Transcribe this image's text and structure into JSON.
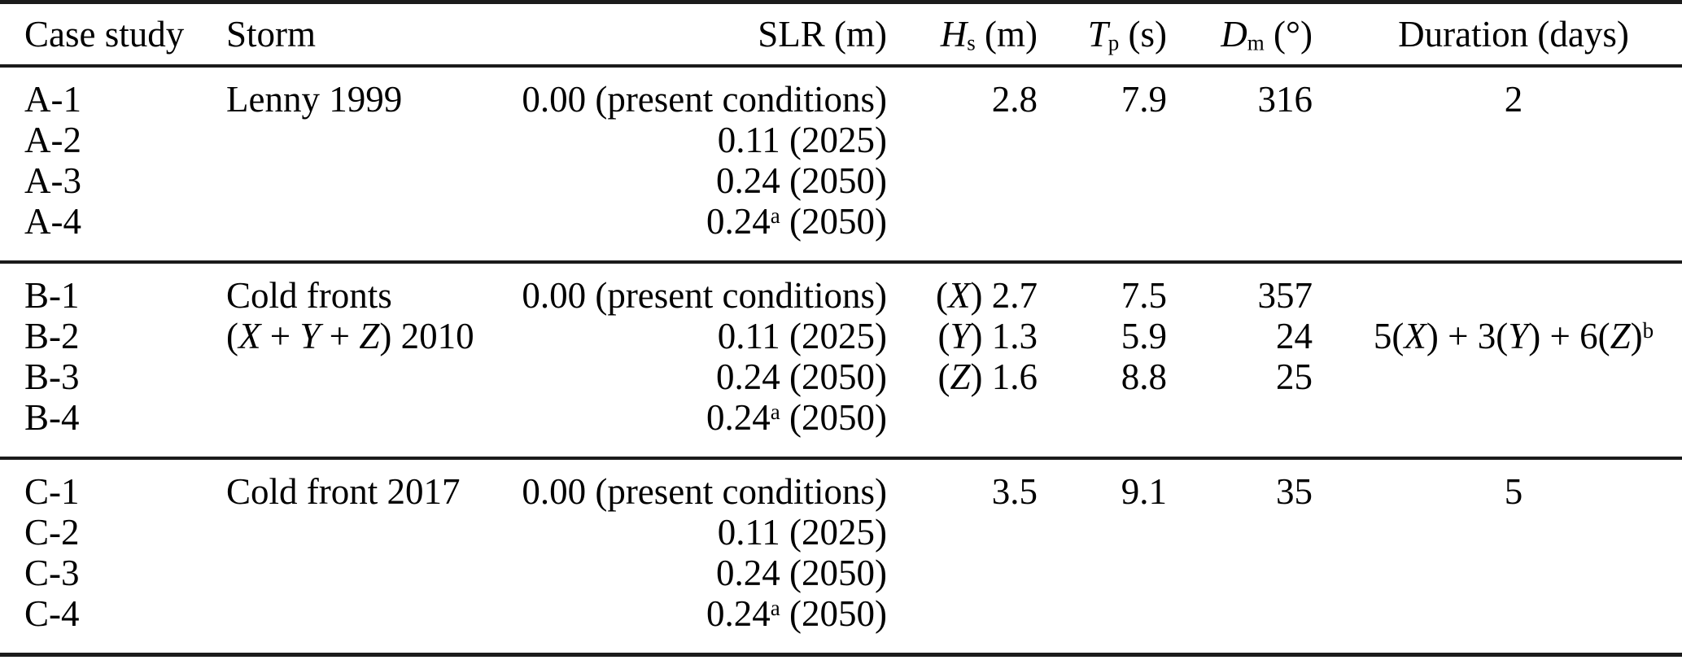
{
  "table": {
    "columns": [
      {
        "id": "case_study",
        "header": [
          {
            "t": "Case study"
          }
        ]
      },
      {
        "id": "storm",
        "header": [
          {
            "t": "Storm"
          }
        ]
      },
      {
        "id": "slr",
        "header": [
          {
            "t": "SLR (m)"
          }
        ]
      },
      {
        "id": "hs",
        "header": [
          {
            "t": "H",
            "style": "i"
          },
          {
            "t": "s",
            "style": "sub"
          },
          {
            "t": " (m)"
          }
        ]
      },
      {
        "id": "tp",
        "header": [
          {
            "t": "T",
            "style": "i"
          },
          {
            "t": "p",
            "style": "sub"
          },
          {
            "t": " (s)"
          }
        ]
      },
      {
        "id": "dm",
        "header": [
          {
            "t": "D",
            "style": "i"
          },
          {
            "t": "m",
            "style": "sub"
          },
          {
            "t": " (°)"
          }
        ]
      },
      {
        "id": "duration",
        "header": [
          {
            "t": "Duration (days)"
          }
        ]
      }
    ],
    "groups": [
      {
        "id": "A",
        "rows": [
          [
            [
              {
                "t": "A-1"
              }
            ],
            [
              {
                "t": "Lenny 1999"
              }
            ],
            [
              {
                "t": "0.00 (present conditions)"
              }
            ],
            [
              {
                "t": "2.8"
              }
            ],
            [
              {
                "t": "7.9"
              }
            ],
            [
              {
                "t": "316"
              }
            ],
            [
              {
                "t": "2"
              }
            ]
          ],
          [
            [
              {
                "t": "A-2"
              }
            ],
            [],
            [
              {
                "t": "0.11 (2025)"
              }
            ],
            [],
            [],
            [],
            []
          ],
          [
            [
              {
                "t": "A-3"
              }
            ],
            [],
            [
              {
                "t": "0.24 (2050)"
              }
            ],
            [],
            [],
            [],
            []
          ],
          [
            [
              {
                "t": "A-4"
              }
            ],
            [],
            [
              {
                "t": "0.24"
              },
              {
                "t": "a",
                "style": "sup"
              },
              {
                "t": " (2050)"
              }
            ],
            [],
            [],
            [],
            []
          ]
        ]
      },
      {
        "id": "B",
        "rows": [
          [
            [
              {
                "t": "B-1"
              }
            ],
            [
              {
                "t": "Cold fronts"
              }
            ],
            [
              {
                "t": "0.00 (present conditions)"
              }
            ],
            [
              {
                "t": "("
              },
              {
                "t": "X",
                "style": "i"
              },
              {
                "t": ") 2.7"
              }
            ],
            [
              {
                "t": "7.5"
              }
            ],
            [
              {
                "t": "357"
              }
            ],
            []
          ],
          [
            [
              {
                "t": "B-2"
              }
            ],
            [
              {
                "t": "("
              },
              {
                "t": "X",
                "style": "i"
              },
              {
                "t": " + "
              },
              {
                "t": "Y",
                "style": "i"
              },
              {
                "t": " + "
              },
              {
                "t": "Z",
                "style": "i"
              },
              {
                "t": ") 2010"
              }
            ],
            [
              {
                "t": "0.11 (2025)"
              }
            ],
            [
              {
                "t": "("
              },
              {
                "t": "Y",
                "style": "i"
              },
              {
                "t": ") 1.3"
              }
            ],
            [
              {
                "t": "5.9"
              }
            ],
            [
              {
                "t": "24"
              }
            ],
            [
              {
                "t": "5("
              },
              {
                "t": "X",
                "style": "i"
              },
              {
                "t": ") + 3("
              },
              {
                "t": "Y",
                "style": "i"
              },
              {
                "t": ") + 6("
              },
              {
                "t": "Z",
                "style": "i"
              },
              {
                "t": ")"
              },
              {
                "t": "b",
                "style": "sup"
              }
            ]
          ],
          [
            [
              {
                "t": "B-3"
              }
            ],
            [],
            [
              {
                "t": "0.24 (2050)"
              }
            ],
            [
              {
                "t": "("
              },
              {
                "t": "Z",
                "style": "i"
              },
              {
                "t": ") 1.6"
              }
            ],
            [
              {
                "t": "8.8"
              }
            ],
            [
              {
                "t": "25"
              }
            ],
            []
          ],
          [
            [
              {
                "t": "B-4"
              }
            ],
            [],
            [
              {
                "t": "0.24"
              },
              {
                "t": "a",
                "style": "sup"
              },
              {
                "t": " (2050)"
              }
            ],
            [],
            [],
            [],
            []
          ]
        ]
      },
      {
        "id": "C",
        "rows": [
          [
            [
              {
                "t": "C-1"
              }
            ],
            [
              {
                "t": "Cold front 2017"
              }
            ],
            [
              {
                "t": "0.00 (present conditions)"
              }
            ],
            [
              {
                "t": "3.5"
              }
            ],
            [
              {
                "t": "9.1"
              }
            ],
            [
              {
                "t": "35"
              }
            ],
            [
              {
                "t": "5"
              }
            ]
          ],
          [
            [
              {
                "t": "C-2"
              }
            ],
            [],
            [
              {
                "t": "0.11 (2025)"
              }
            ],
            [],
            [],
            [],
            []
          ],
          [
            [
              {
                "t": "C-3"
              }
            ],
            [],
            [
              {
                "t": "0.24 (2050)"
              }
            ],
            [],
            [],
            [],
            []
          ],
          [
            [
              {
                "t": "C-4"
              }
            ],
            [],
            [
              {
                "t": "0.24"
              },
              {
                "t": "a",
                "style": "sup"
              },
              {
                "t": " (2050)"
              }
            ],
            [],
            [],
            [],
            []
          ]
        ]
      }
    ]
  }
}
